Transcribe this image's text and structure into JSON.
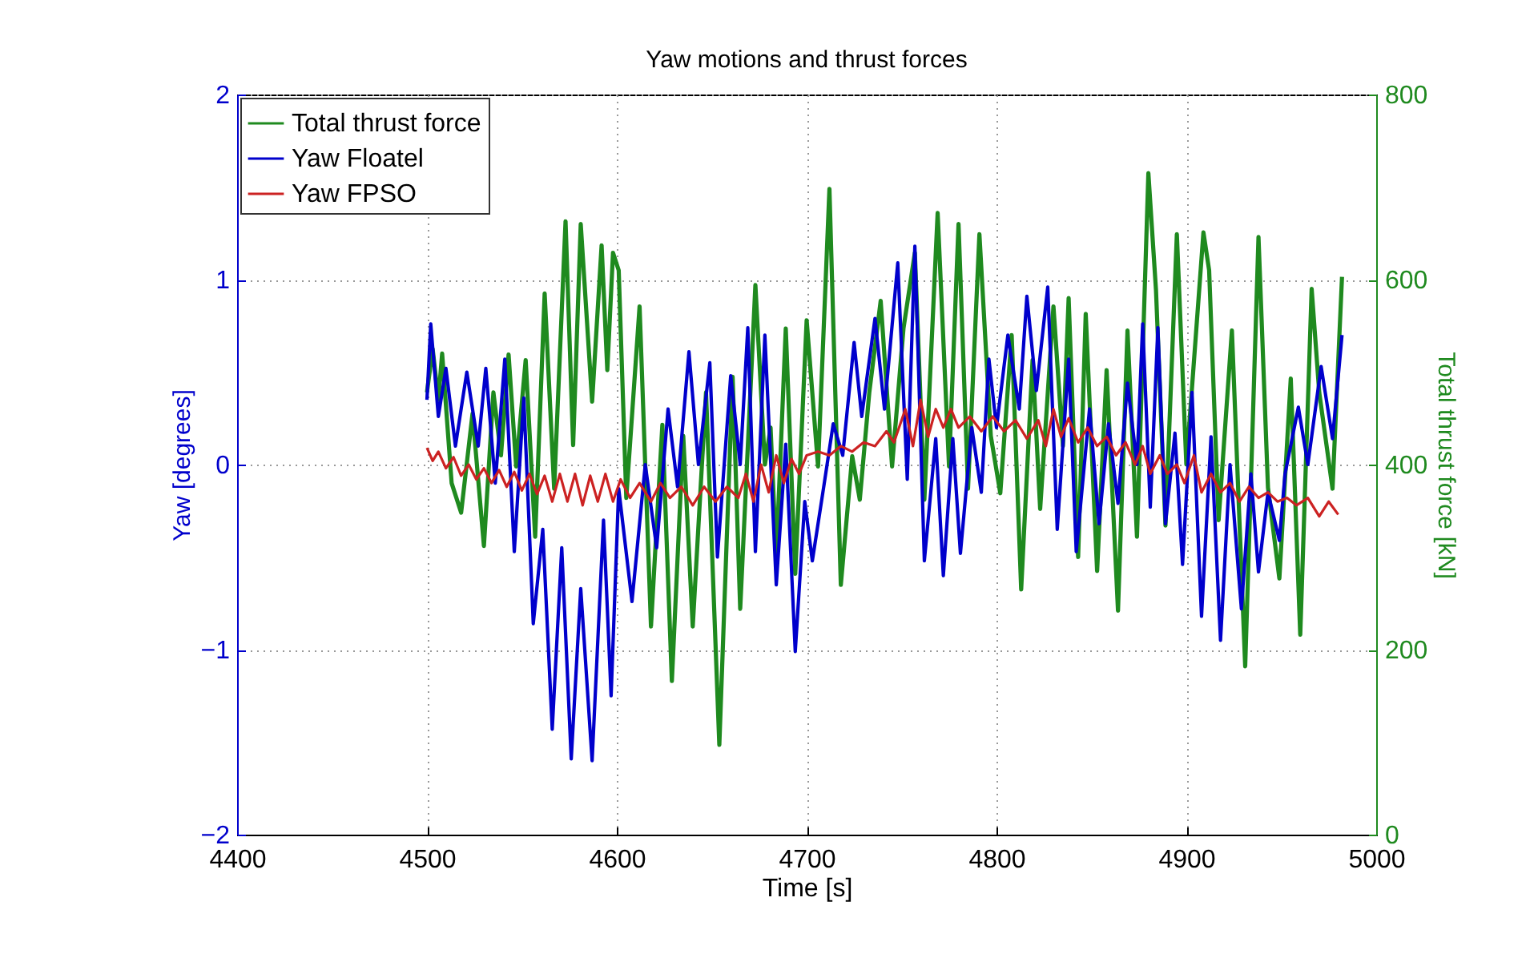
{
  "chart_data": {
    "type": "line",
    "title": "Yaw motions and thrust forces",
    "xlabel": "Time [s]",
    "ylabel": "Yaw [degrees]",
    "y2label": "Total thrust force [kN]",
    "xlim": [
      4400,
      5000
    ],
    "xticks": [
      4400,
      4500,
      4600,
      4700,
      4800,
      4900,
      5000
    ],
    "ylim": [
      -2,
      2
    ],
    "yticks": [
      -2,
      -1,
      0,
      1,
      2
    ],
    "y2lim": [
      0,
      800
    ],
    "y2ticks": [
      0,
      200,
      400,
      600,
      800
    ],
    "grid": true,
    "legend": "top left",
    "line_style": "solid",
    "marker": "none",
    "series": [
      {
        "name": "Total thrust force",
        "color": "#1f8a1f",
        "axis": "y2",
        "x": [
          4500,
          4503,
          4506,
          4508,
          4513,
          4518,
          4524,
          4530,
          4535,
          4539,
          4543,
          4547,
          4552,
          4557,
          4562,
          4567,
          4573,
          4577,
          4581,
          4587,
          4592,
          4595,
          4598,
          4601,
          4605,
          4612,
          4618,
          4624,
          4629,
          4635,
          4640,
          4647,
          4654,
          4661,
          4665,
          4673,
          4678,
          4681,
          4684,
          4689,
          4694,
          4700,
          4706,
          4712,
          4718,
          4724,
          4728,
          4733,
          4739,
          4745,
          4751,
          4757,
          4762,
          4769,
          4775,
          4780,
          4785,
          4791,
          4797,
          4802,
          4808,
          4813,
          4819,
          4823,
          4830,
          4835,
          4838,
          4843,
          4847,
          4853,
          4858,
          4864,
          4869,
          4874,
          4880,
          4884,
          4889,
          4895,
          4900,
          4909,
          4912,
          4917,
          4924,
          4931,
          4938,
          4943,
          4949,
          4955,
          4960,
          4966,
          4970,
          4977,
          4982
        ],
        "values": [
          478,
          525,
          470,
          520,
          380,
          348,
          455,
          312,
          478,
          410,
          519,
          398,
          513,
          322,
          585,
          374,
          663,
          421,
          660,
          468,
          637,
          502,
          629,
          610,
          364,
          571,
          225,
          443,
          166,
          431,
          225,
          478,
          97,
          495,
          244,
          594,
          400,
          440,
          300,
          547,
          282,
          556,
          398,
          698,
          270,
          409,
          362,
          478,
          577,
          398,
          547,
          629,
          362,
          672,
          398,
          660,
          374,
          649,
          431,
          369,
          540,
          265,
          513,
          352,
          571,
          420,
          580,
          300,
          563,
          285,
          502,
          242,
          545,
          322,
          715,
          589,
          334,
          649,
          400,
          651,
          610,
          340,
          545,
          182,
          646,
          375,
          277,
          493,
          216,
          590,
          478,
          374,
          603
        ]
      },
      {
        "name": "Yaw Floatel",
        "color": "#0000cc",
        "x": [
          4500,
          4502,
          4506,
          4510,
          4515,
          4521,
          4527,
          4531,
          4536,
          4541,
          4546,
          4551,
          4556,
          4561,
          4566,
          4571,
          4576,
          4581,
          4587,
          4593,
          4597,
          4601,
          4608,
          4615,
          4621,
          4627,
          4632,
          4638,
          4643,
          4649,
          4653,
          4660,
          4665,
          4669,
          4673,
          4678,
          4684,
          4689,
          4694,
          4699,
          4703,
          4709,
          4714,
          4719,
          4725,
          4729,
          4736,
          4741,
          4748,
          4753,
          4757,
          4762,
          4768,
          4772,
          4777,
          4781,
          4787,
          4792,
          4796,
          4800,
          4806,
          4812,
          4816,
          4821,
          4827,
          4832,
          4838,
          4842,
          4849,
          4854,
          4859,
          4864,
          4869,
          4874,
          4877,
          4881,
          4885,
          4889,
          4894,
          4898,
          4903,
          4908,
          4913,
          4918,
          4923,
          4929,
          4934,
          4938,
          4943,
          4949,
          4952,
          4959,
          4964,
          4971,
          4977,
          4982
        ],
        "values": [
          0.35,
          0.76,
          0.26,
          0.52,
          0.1,
          0.5,
          0.1,
          0.52,
          -0.1,
          0.57,
          -0.47,
          0.36,
          -0.86,
          -0.35,
          -1.43,
          -0.45,
          -1.59,
          -0.67,
          -1.6,
          -0.3,
          -1.25,
          -0.13,
          -0.74,
          0,
          -0.45,
          0.3,
          -0.12,
          0.61,
          0,
          0.55,
          -0.5,
          0.48,
          0,
          0.74,
          -0.47,
          0.7,
          -0.65,
          0.11,
          -1.01,
          -0.2,
          -0.52,
          -0.12,
          0.22,
          0.05,
          0.66,
          0.26,
          0.79,
          0.3,
          1.09,
          -0.08,
          1.18,
          -0.52,
          0.14,
          -0.6,
          0.14,
          -0.48,
          0.2,
          -0.15,
          0.57,
          0.2,
          0.7,
          0.3,
          0.91,
          0.4,
          0.96,
          -0.35,
          0.57,
          -0.47,
          0.3,
          -0.32,
          0.22,
          -0.21,
          0.44,
          0,
          0.76,
          -0.23,
          0.74,
          -0.32,
          0.17,
          -0.54,
          0.39,
          -0.82,
          0.15,
          -0.95,
          0,
          -0.78,
          -0.05,
          -0.58,
          -0.15,
          -0.41,
          -0.05,
          0.31,
          0,
          0.53,
          0.14,
          0.7
        ]
      },
      {
        "name": "Yaw FPSO",
        "color": "#cc2222",
        "x": [
          4500,
          4503,
          4506,
          4510,
          4514,
          4518,
          4522,
          4526,
          4530,
          4534,
          4538,
          4542,
          4546,
          4550,
          4554,
          4558,
          4562,
          4566,
          4570,
          4574,
          4578,
          4582,
          4586,
          4590,
          4594,
          4598,
          4602,
          4607,
          4612,
          4618,
          4623,
          4628,
          4634,
          4640,
          4646,
          4652,
          4658,
          4664,
          4668,
          4672,
          4676,
          4680,
          4684,
          4688,
          4692,
          4696,
          4700,
          4706,
          4712,
          4718,
          4724,
          4730,
          4736,
          4742,
          4746,
          4752,
          4756,
          4760,
          4764,
          4768,
          4772,
          4776,
          4780,
          4786,
          4792,
          4798,
          4804,
          4810,
          4816,
          4822,
          4826,
          4830,
          4834,
          4838,
          4843,
          4848,
          4853,
          4858,
          4863,
          4868,
          4873,
          4877,
          4881,
          4886,
          4890,
          4895,
          4899,
          4904,
          4908,
          4913,
          4918,
          4923,
          4928,
          4933,
          4938,
          4943,
          4948,
          4953,
          4958,
          4964,
          4970,
          4975,
          4980
        ],
        "values": [
          0.09,
          0.02,
          0.07,
          -0.02,
          0.04,
          -0.06,
          0,
          -0.08,
          -0.02,
          -0.1,
          -0.03,
          -0.12,
          -0.04,
          -0.14,
          -0.05,
          -0.16,
          -0.06,
          -0.2,
          -0.05,
          -0.2,
          -0.05,
          -0.22,
          -0.06,
          -0.2,
          -0.05,
          -0.2,
          -0.08,
          -0.18,
          -0.1,
          -0.2,
          -0.1,
          -0.18,
          -0.12,
          -0.22,
          -0.12,
          -0.2,
          -0.12,
          -0.18,
          -0.05,
          -0.2,
          0,
          -0.15,
          0.05,
          -0.1,
          0.03,
          -0.05,
          0.05,
          0.07,
          0.05,
          0.1,
          0.07,
          0.12,
          0.1,
          0.18,
          0.12,
          0.3,
          0.1,
          0.35,
          0.15,
          0.3,
          0.2,
          0.3,
          0.2,
          0.26,
          0.18,
          0.26,
          0.18,
          0.24,
          0.14,
          0.24,
          0.1,
          0.3,
          0.15,
          0.25,
          0.12,
          0.2,
          0.1,
          0.15,
          0.05,
          0.12,
          0,
          0.1,
          -0.05,
          0.05,
          -0.05,
          0,
          -0.1,
          0.05,
          -0.15,
          -0.05,
          -0.15,
          -0.1,
          -0.2,
          -0.12,
          -0.18,
          -0.15,
          -0.2,
          -0.18,
          -0.22,
          -0.18,
          -0.28,
          -0.2,
          -0.27
        ]
      }
    ]
  }
}
